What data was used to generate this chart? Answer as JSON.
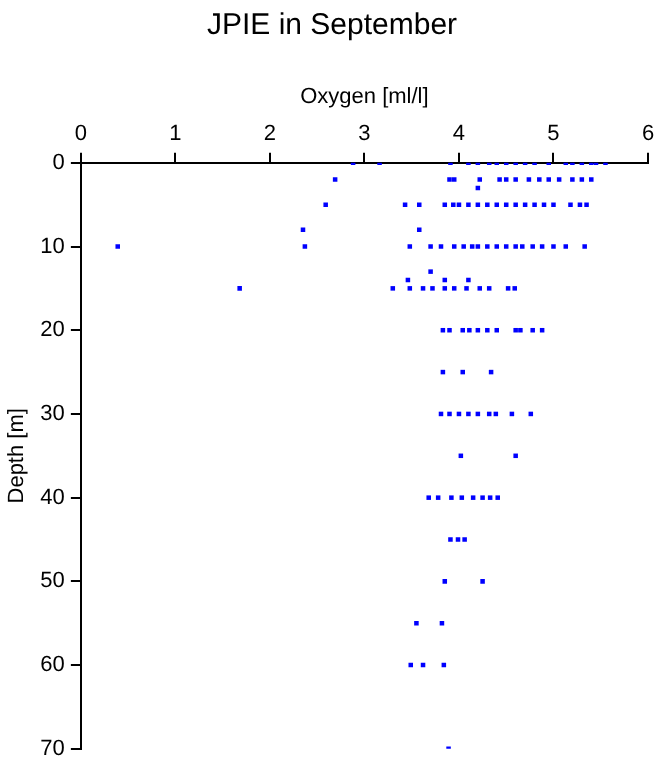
{
  "chart_data": {
    "type": "scatter",
    "title": "JPIE in September",
    "xlabel": "Oxygen [ml/l]",
    "ylabel": "Depth [m]",
    "xlim": [
      0,
      6
    ],
    "xticks": [
      0,
      1,
      2,
      3,
      4,
      5,
      6
    ],
    "ylim": [
      70,
      0
    ],
    "yticks": [
      0,
      10,
      20,
      30,
      40,
      50,
      60,
      70
    ],
    "grid": false,
    "legend": false,
    "marker": "square",
    "series": [
      {
        "color": "#0000ff",
        "x": [
          2.88,
          3.16,
          3.91,
          4.1,
          4.2,
          4.32,
          4.4,
          4.5,
          4.6,
          4.7,
          4.8,
          4.95,
          5.13,
          5.2,
          5.3,
          5.4,
          5.45,
          5.55,
          2.69,
          3.9,
          3.95,
          4.22,
          4.43,
          4.5,
          4.6,
          4.74,
          4.85,
          4.95,
          5.06,
          5.2,
          5.3,
          5.4,
          4.2,
          2.59,
          3.43,
          3.58,
          3.85,
          3.94,
          4.0,
          4.1,
          4.2,
          4.3,
          4.4,
          4.5,
          4.6,
          4.7,
          4.8,
          4.9,
          5.0,
          5.18,
          5.28,
          5.35,
          2.35,
          3.58,
          0.39,
          2.37,
          3.48,
          3.7,
          3.81,
          3.95,
          4.05,
          4.14,
          4.2,
          4.3,
          4.4,
          4.5,
          4.6,
          4.67,
          4.78,
          4.88,
          5.0,
          5.13,
          5.33,
          3.7,
          3.46,
          3.85,
          4.1,
          1.68,
          3.3,
          3.48,
          3.62,
          3.72,
          3.85,
          3.95,
          4.08,
          4.22,
          4.32,
          4.52,
          4.59,
          3.83,
          3.9,
          4.04,
          4.11,
          4.2,
          4.3,
          4.4,
          4.6,
          4.65,
          4.78,
          4.88,
          3.83,
          4.04,
          4.34,
          3.81,
          3.9,
          4.0,
          4.1,
          4.2,
          4.32,
          4.39,
          4.56,
          4.76,
          4.02,
          4.6,
          3.68,
          3.78,
          3.92,
          4.03,
          4.15,
          4.25,
          4.33,
          4.41,
          3.91,
          3.99,
          4.06,
          3.85,
          4.25,
          3.55,
          3.82,
          3.49,
          3.62,
          3.84,
          3.89
        ],
        "values": [
          0,
          0,
          0,
          0,
          0,
          0,
          0,
          0,
          0,
          0,
          0,
          0,
          0,
          0,
          0,
          0,
          0,
          0,
          2,
          2,
          2,
          2,
          2,
          2,
          2,
          2,
          2,
          2,
          2,
          2,
          2,
          2,
          3,
          5,
          5,
          5,
          5,
          5,
          5,
          5,
          5,
          5,
          5,
          5,
          5,
          5,
          5,
          5,
          5,
          5,
          5,
          5,
          8,
          8,
          10,
          10,
          10,
          10,
          10,
          10,
          10,
          10,
          10,
          10,
          10,
          10,
          10,
          10,
          10,
          10,
          10,
          10,
          10,
          13,
          14,
          14,
          14,
          15,
          15,
          15,
          15,
          15,
          15,
          15,
          15,
          15,
          15,
          15,
          15,
          20,
          20,
          20,
          20,
          20,
          20,
          20,
          20,
          20,
          20,
          20,
          25,
          25,
          25,
          30,
          30,
          30,
          30,
          30,
          30,
          30,
          30,
          30,
          35,
          35,
          40,
          40,
          40,
          40,
          40,
          40,
          40,
          40,
          45,
          45,
          45,
          50,
          50,
          55,
          55,
          60,
          60,
          60,
          70
        ]
      }
    ]
  }
}
